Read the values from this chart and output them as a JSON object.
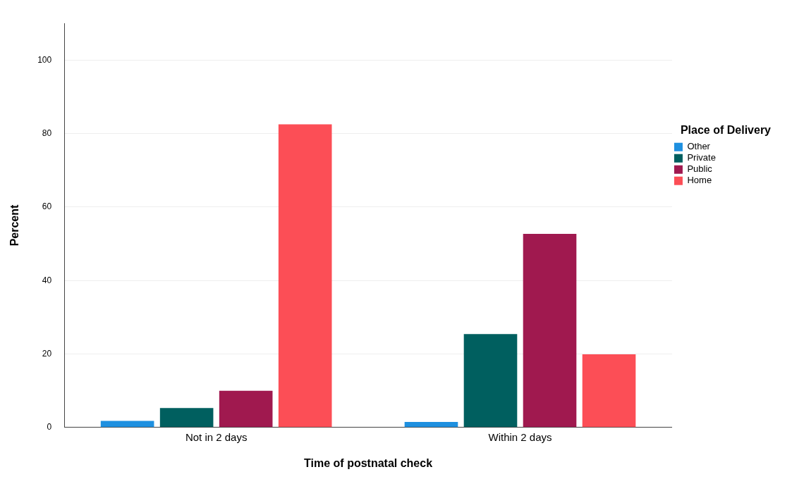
{
  "chart_data": {
    "type": "bar",
    "xlabel": "Time of postnatal check",
    "ylabel": "Percent",
    "legend_title": "Place of Delivery",
    "categories": [
      "Not in 2 days",
      "Within 2 days"
    ],
    "series": [
      {
        "name": "Other",
        "color": "#1e90e0",
        "values": [
          1.8,
          1.5
        ]
      },
      {
        "name": "Private",
        "color": "#005f5f",
        "values": [
          5.3,
          25.4
        ]
      },
      {
        "name": "Public",
        "color": "#a0194f",
        "values": [
          10.0,
          52.7
        ]
      },
      {
        "name": "Home",
        "color": "#fc4e56",
        "values": [
          82.5,
          19.9
        ]
      }
    ],
    "ylim": [
      0,
      110
    ],
    "yticks": [
      0,
      20,
      40,
      60,
      80,
      100
    ],
    "grid": "y",
    "legend": "right"
  }
}
